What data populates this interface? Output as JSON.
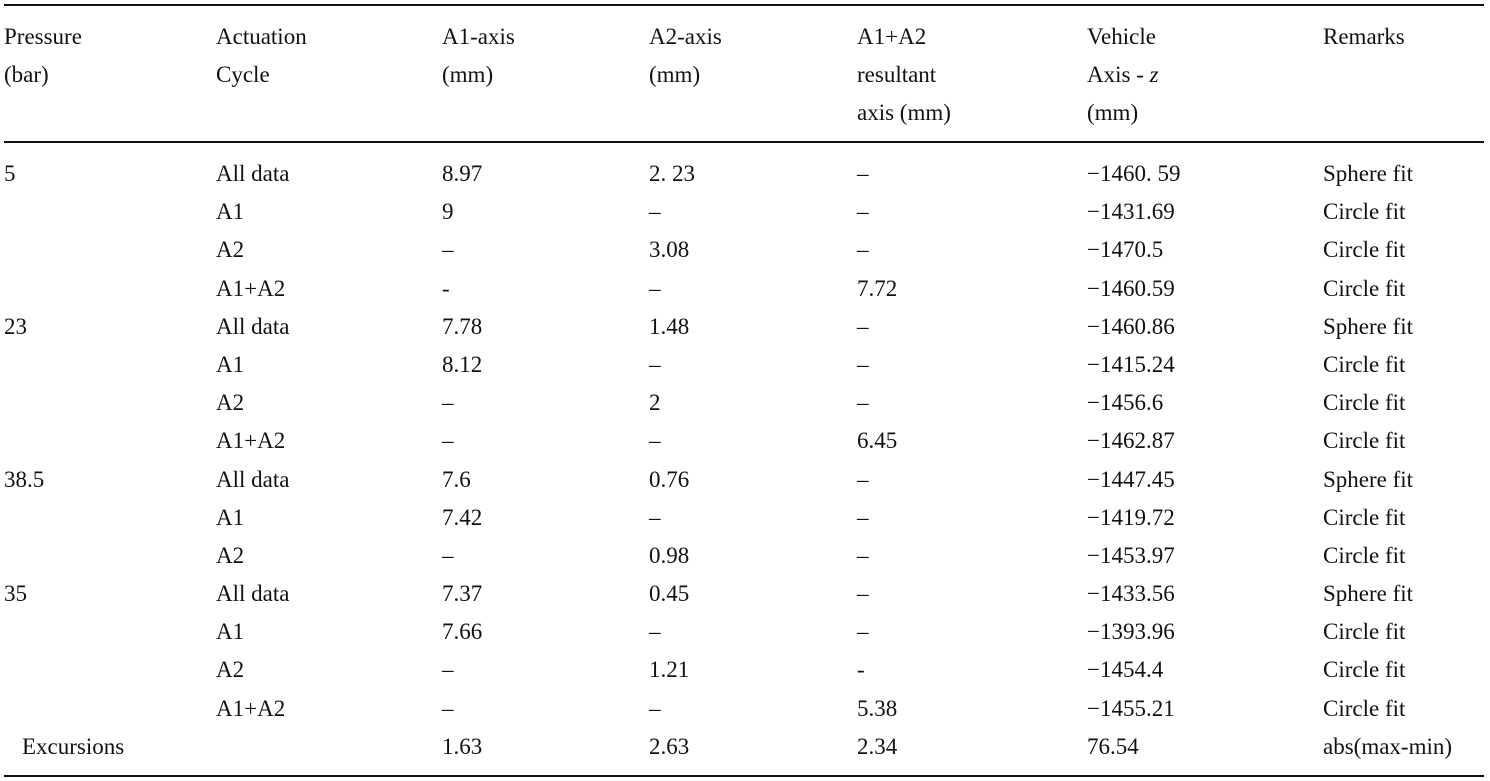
{
  "table": {
    "headers": [
      [
        "Pressure",
        "(bar)"
      ],
      [
        "Actuation",
        "Cycle"
      ],
      [
        "A1-axis",
        "(mm)"
      ],
      [
        "A2-axis",
        "(mm)"
      ],
      [
        "A1+A2",
        "resultant",
        "axis (mm)"
      ],
      [
        "Vehicle",
        "Axis - z",
        "(mm)"
      ],
      [
        "Remarks"
      ]
    ],
    "rows": [
      [
        "5",
        "All data",
        "8.97",
        "2. 23",
        "–",
        "−1460. 59",
        "Sphere fit"
      ],
      [
        "",
        "A1",
        "9",
        "–",
        "–",
        "−1431.69",
        "Circle fit"
      ],
      [
        "",
        "A2",
        "–",
        "3.08",
        "–",
        "−1470.5",
        "Circle fit"
      ],
      [
        "",
        "A1+A2",
        "-",
        "–",
        "7.72",
        "−1460.59",
        "Circle fit"
      ],
      [
        "23",
        "All data",
        "7.78",
        "1.48",
        "–",
        "−1460.86",
        "Sphere fit"
      ],
      [
        "",
        "A1",
        "8.12",
        "–",
        "–",
        "−1415.24",
        "Circle fit"
      ],
      [
        "",
        "A2",
        "–",
        "2",
        "–",
        "−1456.6",
        "Circle fit"
      ],
      [
        "",
        "A1+A2",
        "–",
        "–",
        "6.45",
        "−1462.87",
        "Circle fit"
      ],
      [
        "38.5",
        "All data",
        "7.6",
        "0.76",
        "–",
        "−1447.45",
        "Sphere fit"
      ],
      [
        "",
        "A1",
        "7.42",
        "–",
        "–",
        "−1419.72",
        "Circle fit"
      ],
      [
        "",
        "A2",
        "–",
        "0.98",
        "–",
        "−1453.97",
        "Circle fit"
      ],
      [
        "35",
        "All data",
        "7.37",
        "0.45",
        "–",
        "−1433.56",
        "Sphere fit"
      ],
      [
        "",
        "A1",
        "7.66",
        "–",
        "–",
        "−1393.96",
        "Circle fit"
      ],
      [
        "",
        "A2",
        "–",
        "1.21",
        "-",
        "−1454.4",
        "Circle fit"
      ],
      [
        "",
        "A1+A2",
        "–",
        "–",
        "5.38",
        "−1455.21",
        "Circle fit"
      ]
    ],
    "excursions": {
      "label": "Excursions",
      "values": [
        "",
        "1.63",
        "2.63",
        "2.34",
        "76.54",
        "abs(max-min)"
      ]
    }
  }
}
